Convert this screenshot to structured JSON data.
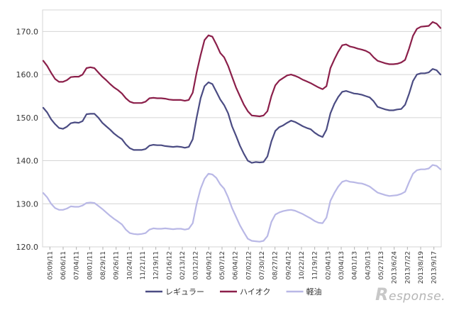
{
  "chart_data": {
    "type": "line",
    "ylim": [
      120,
      175
    ],
    "yticks": [
      120,
      130,
      140,
      150,
      160,
      170
    ],
    "ytick_labels": [
      "120.0",
      "130.0",
      "140.0",
      "150.0",
      "160.0",
      "170.0"
    ],
    "grid": true,
    "legend_position": "bottom",
    "x_labels": [
      "05/09/11",
      "06/06/11",
      "07/04/11",
      "08/01/11",
      "08/29/11",
      "09/26/11",
      "10/24/11",
      "11/21/11",
      "12/19/11",
      "01/16/12",
      "02/13/12",
      "03/12/12",
      "04/09/12",
      "05/07/12",
      "06/04/12",
      "07/02/12",
      "07/30/12",
      "08/27/12",
      "09/24/12",
      "10/22/12",
      "11/19/12",
      "02/04/13",
      "03/04/13",
      "04/01/13",
      "04/30/13",
      "05/27/13",
      "2013/6/24",
      "2013/7/22",
      "2013/8/19",
      "2013/9/17"
    ],
    "series": [
      {
        "name": "レギュラー",
        "color": "#4b4c83",
        "values": [
          152.3,
          151.2,
          149.6,
          148.5,
          147.6,
          147.4,
          147.9,
          148.7,
          148.9,
          148.8,
          149.2,
          150.8,
          150.9,
          150.9,
          150.0,
          148.8,
          148.0,
          147.2,
          146.3,
          145.6,
          145.0,
          143.8,
          142.9,
          142.5,
          142.5,
          142.5,
          142.7,
          143.5,
          143.7,
          143.6,
          143.6,
          143.4,
          143.3,
          143.2,
          143.3,
          143.2,
          143.0,
          143.2,
          145.0,
          150.0,
          154.5,
          157.3,
          158.2,
          157.8,
          156.0,
          154.2,
          152.9,
          151.0,
          148.0,
          145.8,
          143.5,
          141.6,
          140.0,
          139.5,
          139.7,
          139.6,
          139.7,
          141.0,
          144.5,
          146.9,
          147.8,
          148.2,
          148.8,
          149.3,
          149.0,
          148.5,
          148.0,
          147.6,
          147.3,
          146.5,
          145.9,
          145.5,
          147.2,
          151.0,
          153.2,
          154.8,
          156.0,
          156.2,
          155.9,
          155.6,
          155.5,
          155.3,
          155.0,
          154.7,
          153.8,
          152.5,
          152.2,
          151.9,
          151.7,
          151.7,
          151.9,
          152.0,
          153.0,
          155.5,
          158.5,
          160.0,
          160.3,
          160.3,
          160.5,
          161.3,
          161.0,
          160.0
        ]
      },
      {
        "name": "ハイオク",
        "color": "#8b1f4a",
        "values": [
          163.2,
          162.0,
          160.4,
          159.0,
          158.3,
          158.3,
          158.7,
          159.4,
          159.5,
          159.5,
          160.0,
          161.5,
          161.7,
          161.5,
          160.5,
          159.5,
          158.7,
          157.8,
          157.0,
          156.4,
          155.6,
          154.5,
          153.7,
          153.4,
          153.4,
          153.4,
          153.7,
          154.5,
          154.6,
          154.5,
          154.5,
          154.4,
          154.2,
          154.1,
          154.1,
          154.1,
          153.9,
          154.1,
          155.8,
          160.5,
          164.5,
          168.0,
          169.1,
          168.8,
          167.0,
          165.0,
          164.0,
          162.0,
          159.5,
          157.0,
          155.0,
          153.0,
          151.5,
          150.5,
          150.4,
          150.3,
          150.5,
          151.5,
          155.0,
          157.5,
          158.6,
          159.2,
          159.8,
          160.0,
          159.7,
          159.3,
          158.8,
          158.4,
          158.0,
          157.5,
          157.0,
          156.6,
          157.3,
          161.5,
          163.5,
          165.3,
          166.8,
          167.0,
          166.5,
          166.3,
          166.0,
          165.8,
          165.5,
          165.0,
          164.0,
          163.2,
          162.9,
          162.6,
          162.4,
          162.4,
          162.5,
          162.8,
          163.4,
          166.0,
          169.0,
          170.6,
          171.1,
          171.2,
          171.3,
          172.2,
          171.8,
          170.8
        ]
      },
      {
        "name": "軽油",
        "color": "#b9b8e6",
        "values": [
          132.5,
          131.5,
          130.0,
          129.0,
          128.6,
          128.6,
          128.9,
          129.4,
          129.3,
          129.3,
          129.6,
          130.2,
          130.3,
          130.2,
          129.5,
          128.8,
          128.0,
          127.2,
          126.5,
          125.9,
          125.2,
          124.0,
          123.2,
          123.0,
          122.9,
          123.0,
          123.2,
          124.0,
          124.3,
          124.2,
          124.2,
          124.3,
          124.2,
          124.1,
          124.2,
          124.2,
          124.0,
          124.2,
          125.5,
          130.0,
          133.5,
          135.8,
          137.0,
          136.8,
          136.0,
          134.5,
          133.5,
          131.5,
          129.0,
          127.0,
          125.0,
          123.4,
          121.9,
          121.4,
          121.3,
          121.2,
          121.4,
          122.5,
          125.8,
          127.5,
          128.0,
          128.3,
          128.5,
          128.6,
          128.4,
          128.0,
          127.6,
          127.1,
          126.6,
          126.0,
          125.6,
          125.5,
          126.8,
          130.7,
          132.5,
          134.0,
          135.1,
          135.4,
          135.1,
          135.0,
          134.8,
          134.7,
          134.4,
          134.0,
          133.3,
          132.6,
          132.3,
          132.0,
          131.8,
          131.9,
          132.0,
          132.3,
          132.8,
          135.0,
          137.0,
          137.8,
          138.0,
          138.0,
          138.2,
          139.0,
          138.8,
          138.0
        ]
      }
    ]
  },
  "watermark": {
    "initial": "R",
    "text": "esponse."
  }
}
